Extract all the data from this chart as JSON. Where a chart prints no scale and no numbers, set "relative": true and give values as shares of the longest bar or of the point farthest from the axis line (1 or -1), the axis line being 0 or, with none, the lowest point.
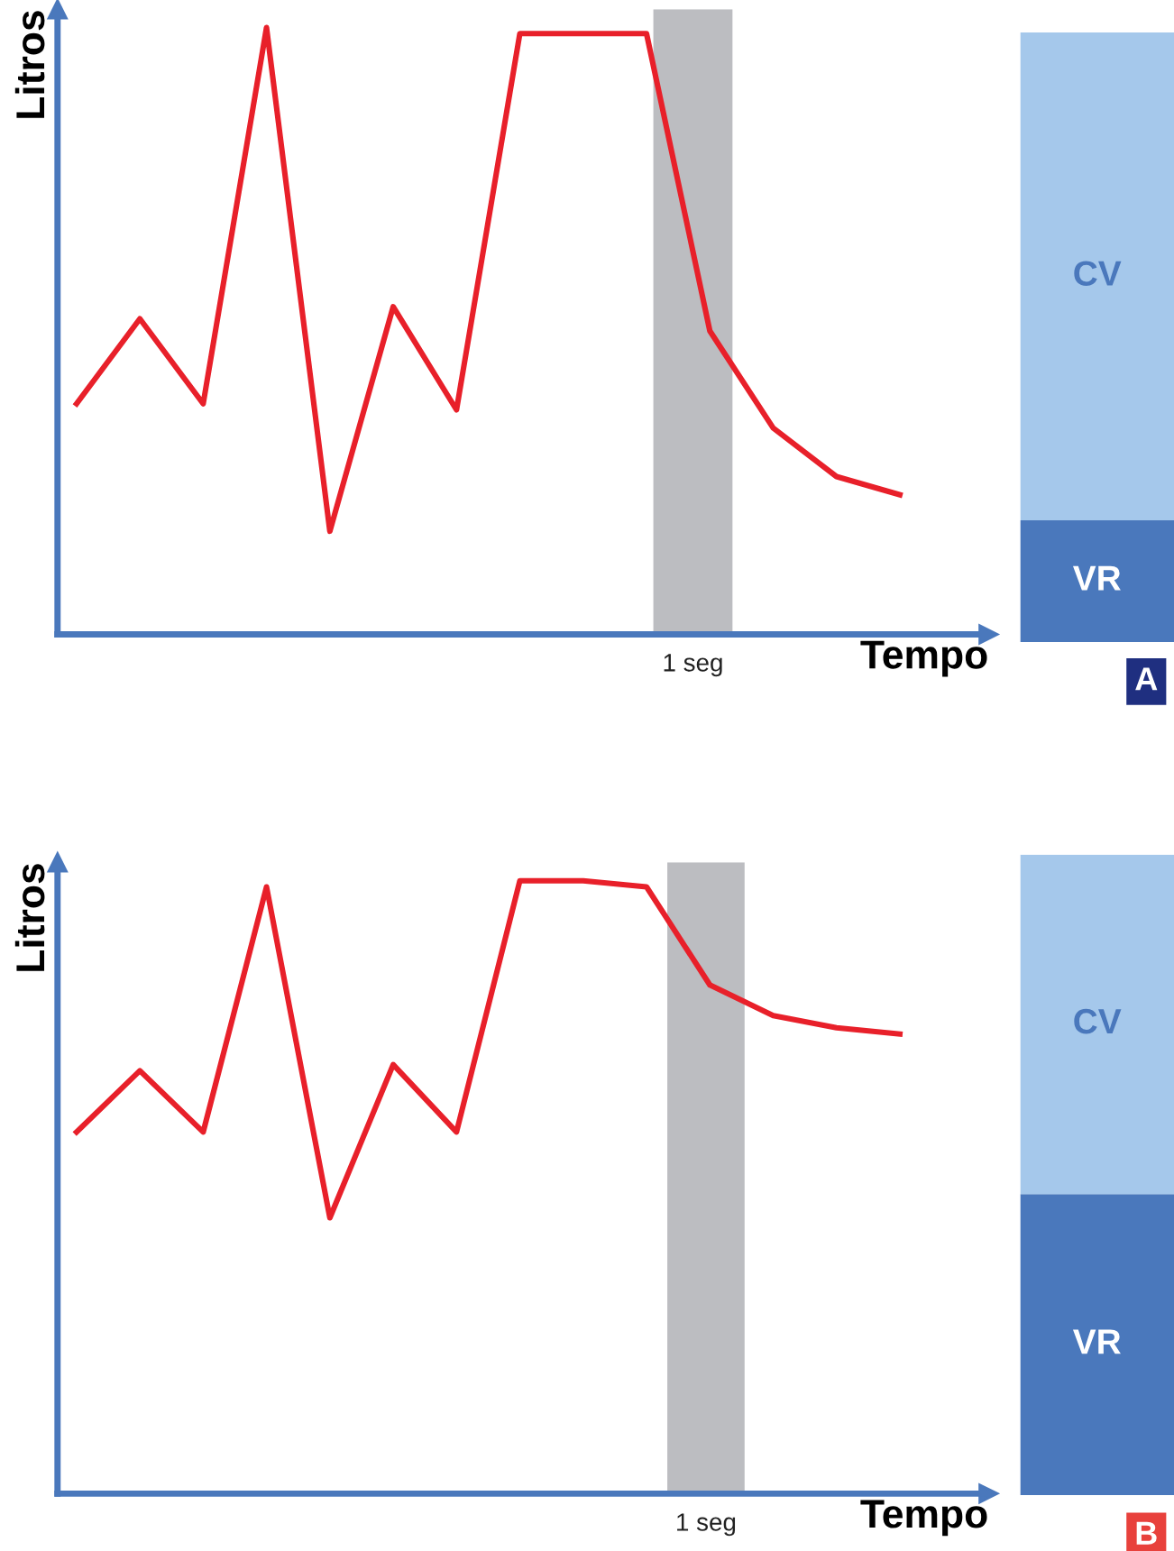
{
  "chart_data": [
    {
      "type": "line",
      "xlabel": "Tempo",
      "ylabel": "Litros",
      "relative": true,
      "categories": [
        null,
        null,
        null,
        null,
        null,
        null,
        null,
        null,
        null,
        null,
        null,
        null,
        null,
        null
      ],
      "series": [
        {
          "color": "#e8202a",
          "values": [
            0.38,
            0.52,
            0.38,
            1.0,
            0.17,
            0.54,
            0.37,
            0.99,
            0.99,
            0.99,
            0.5,
            0.34,
            0.26,
            0.23
          ]
        }
      ],
      "annotations": [
        "1 seg"
      ]
    },
    {
      "type": "bar",
      "stacked": true,
      "relative": true,
      "categories": [
        null
      ],
      "series": [
        {
          "name": "VR",
          "color": "#4a78bc",
          "values": [
            0.2
          ]
        },
        {
          "name": "CV",
          "color": "#a5c8eb",
          "values": [
            0.8
          ]
        }
      ],
      "annotations": [
        "A"
      ]
    },
    {
      "type": "line",
      "xlabel": "Tempo",
      "ylabel": "Litros",
      "relative": true,
      "categories": [
        null,
        null,
        null,
        null,
        null,
        null,
        null,
        null,
        null,
        null,
        null,
        null,
        null,
        null
      ],
      "series": [
        {
          "color": "#e8202a",
          "values": [
            0.59,
            0.69,
            0.59,
            0.99,
            0.45,
            0.7,
            0.59,
            1.0,
            1.0,
            0.99,
            0.83,
            0.78,
            0.76,
            0.75
          ]
        }
      ],
      "annotations": [
        "1 seg"
      ]
    },
    {
      "type": "bar",
      "stacked": true,
      "relative": true,
      "categories": [
        null
      ],
      "series": [
        {
          "name": "VR",
          "color": "#4a78bc",
          "values": [
            0.47
          ]
        },
        {
          "name": "CV",
          "color": "#a5c8eb",
          "values": [
            0.53
          ]
        }
      ],
      "annotations": [
        "B"
      ]
    }
  ]
}
